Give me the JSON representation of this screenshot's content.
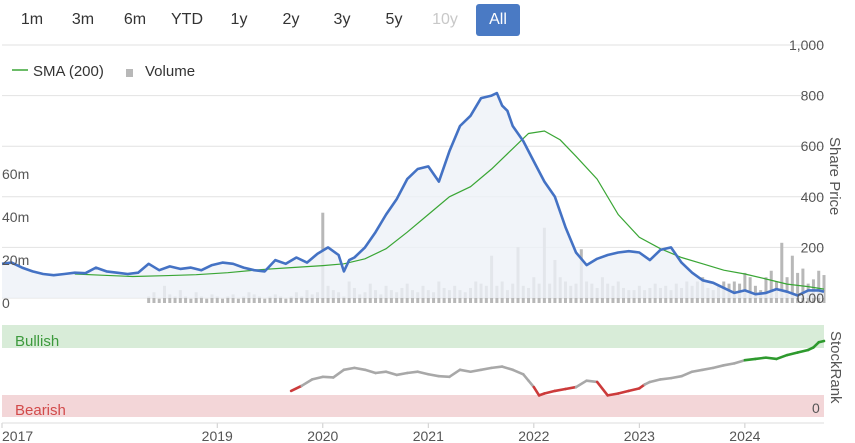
{
  "range_buttons": [
    {
      "label": "1m",
      "state": "normal"
    },
    {
      "label": "3m",
      "state": "normal"
    },
    {
      "label": "6m",
      "state": "normal"
    },
    {
      "label": "YTD",
      "state": "normal"
    },
    {
      "label": "1y",
      "state": "normal"
    },
    {
      "label": "2y",
      "state": "normal"
    },
    {
      "label": "3y",
      "state": "normal"
    },
    {
      "label": "5y",
      "state": "normal"
    },
    {
      "label": "10y",
      "state": "disabled"
    },
    {
      "label": "All",
      "state": "active"
    }
  ],
  "colors": {
    "price_line": "#4472c4",
    "sma_line": "#3aa635",
    "volume_bar": "#b8b8b8",
    "price_area": "#eef1f7",
    "bullish_band": "#d8ecd8",
    "bearish_band": "#f3d6d8",
    "rank_neutral": "#a8a8a8",
    "rank_bearish": "#cc3b3b",
    "rank_bullish": "#2e9a2e",
    "bullish_text": "#3c9a3c",
    "bearish_text": "#d24a4a",
    "grid": "#e2e2e2"
  },
  "chart_data": [
    {
      "type": "line",
      "title": "",
      "legend": {
        "placement": "top-left",
        "entries": [
          "SMA (200)",
          "Volume"
        ]
      },
      "y_right_label": "Share Price",
      "y_right_ticks": [
        "1,000",
        "800",
        "600",
        "400",
        "200",
        "0.00"
      ],
      "y_right_range": [
        0,
        1000
      ],
      "y_left_ticks": [
        "60m",
        "40m",
        "20m",
        "0"
      ],
      "y_left_range": [
        0,
        120
      ],
      "x_ticks": [
        "2017",
        "2019",
        "2020",
        "2021",
        "2022",
        "2023",
        "2024"
      ],
      "x_range": [
        2016.96,
        2024.75
      ],
      "grid": true,
      "series": [
        {
          "name": "",
          "kind": "price",
          "x": [
            2016.96,
            2017.05,
            2017.15,
            2017.25,
            2017.35,
            2017.45,
            2017.55,
            2017.65,
            2017.75,
            2017.85,
            2017.95,
            2018.05,
            2018.15,
            2018.25,
            2018.35,
            2018.45,
            2018.55,
            2018.65,
            2018.75,
            2018.85,
            2018.95,
            2019.05,
            2019.15,
            2019.25,
            2019.35,
            2019.45,
            2019.55,
            2019.65,
            2019.75,
            2019.85,
            2019.95,
            2020.05,
            2020.15,
            2020.2,
            2020.25,
            2020.3,
            2020.4,
            2020.5,
            2020.6,
            2020.7,
            2020.8,
            2020.9,
            2021.0,
            2021.1,
            2021.2,
            2021.3,
            2021.4,
            2021.5,
            2021.6,
            2021.65,
            2021.7,
            2021.75,
            2021.8,
            2021.9,
            2022.0,
            2022.1,
            2022.2,
            2022.3,
            2022.4,
            2022.5,
            2022.6,
            2022.7,
            2022.8,
            2022.9,
            2023.0,
            2023.1,
            2023.2,
            2023.3,
            2023.4,
            2023.5,
            2023.6,
            2023.7,
            2023.8,
            2023.9,
            2024.0,
            2024.1,
            2024.2,
            2024.3,
            2024.4,
            2024.5,
            2024.6,
            2024.7,
            2024.75
          ],
          "values": [
            135,
            140,
            120,
            105,
            95,
            90,
            95,
            100,
            98,
            120,
            105,
            100,
            95,
            100,
            135,
            110,
            125,
            115,
            120,
            110,
            130,
            140,
            135,
            120,
            110,
            105,
            150,
            135,
            160,
            140,
            175,
            200,
            170,
            105,
            150,
            160,
            200,
            260,
            330,
            390,
            470,
            510,
            520,
            460,
            580,
            680,
            720,
            790,
            800,
            810,
            760,
            740,
            680,
            620,
            540,
            460,
            400,
            280,
            180,
            130,
            155,
            170,
            180,
            185,
            180,
            150,
            190,
            200,
            140,
            100,
            70,
            60,
            40,
            20,
            30,
            15,
            20,
            35,
            25,
            10,
            30,
            30,
            25
          ]
        },
        {
          "name": "SMA (200)",
          "kind": "sma",
          "x": [
            2017.65,
            2017.9,
            2018.2,
            2018.5,
            2018.8,
            2019.1,
            2019.4,
            2019.7,
            2020.0,
            2020.2,
            2020.4,
            2020.6,
            2020.8,
            2021.0,
            2021.2,
            2021.4,
            2021.6,
            2021.8,
            2021.95,
            2022.1,
            2022.25,
            2022.4,
            2022.6,
            2022.8,
            2023.0,
            2023.2,
            2023.4,
            2023.6,
            2023.8,
            2024.0,
            2024.2,
            2024.4,
            2024.6,
            2024.75
          ],
          "values": [
            95,
            90,
            85,
            88,
            92,
            100,
            112,
            120,
            128,
            135,
            155,
            195,
            260,
            330,
            400,
            440,
            510,
            590,
            650,
            660,
            625,
            560,
            470,
            330,
            240,
            195,
            160,
            135,
            110,
            95,
            75,
            55,
            45,
            35
          ]
        },
        {
          "name": "Volume",
          "kind": "volume",
          "x": [
            2017.05,
            2017.1,
            2017.15,
            2017.2,
            2017.25,
            2017.3,
            2017.35,
            2017.4,
            2017.45,
            2017.5,
            2017.55,
            2017.6,
            2017.65,
            2017.7,
            2017.75,
            2017.8,
            2017.85,
            2017.9,
            2017.95,
            2018.0,
            2018.05,
            2018.1,
            2018.15,
            2018.2,
            2018.25,
            2018.3,
            2018.35,
            2018.4,
            2018.45,
            2018.5,
            2018.55,
            2018.6,
            2018.65,
            2018.7,
            2018.75,
            2018.8,
            2018.85,
            2018.9,
            2018.95,
            2019.0,
            2019.05,
            2019.1,
            2019.15,
            2019.2,
            2019.25,
            2019.3,
            2019.35,
            2019.4,
            2019.45,
            2019.5,
            2019.55,
            2019.6,
            2019.65,
            2019.7,
            2019.75,
            2019.8,
            2019.85,
            2019.9,
            2019.95,
            2020.0,
            2020.05,
            2020.1,
            2020.15,
            2020.2,
            2020.25,
            2020.3,
            2020.35,
            2020.4,
            2020.45,
            2020.5,
            2020.55,
            2020.6,
            2020.65,
            2020.7,
            2020.75,
            2020.8,
            2020.85,
            2020.9,
            2020.95,
            2021.0,
            2021.05,
            2021.1,
            2021.15,
            2021.2,
            2021.25,
            2021.3,
            2021.35,
            2021.4,
            2021.45,
            2021.5,
            2021.55,
            2021.6,
            2021.65,
            2021.7,
            2021.75,
            2021.8,
            2021.85,
            2021.9,
            2021.95,
            2022.0,
            2022.05,
            2022.1,
            2022.15,
            2022.2,
            2022.25,
            2022.3,
            2022.35,
            2022.4,
            2022.45,
            2022.5,
            2022.55,
            2022.6,
            2022.65,
            2022.7,
            2022.75,
            2022.8,
            2022.85,
            2022.9,
            2022.95,
            2023.0,
            2023.05,
            2023.1,
            2023.15,
            2023.2,
            2023.25,
            2023.3,
            2023.35,
            2023.4,
            2023.45,
            2023.5,
            2023.55,
            2023.6,
            2023.65,
            2023.7,
            2023.75,
            2023.8,
            2023.85,
            2023.9,
            2023.95,
            2024.0,
            2024.05,
            2024.1,
            2024.15,
            2024.2,
            2024.25,
            2024.3,
            2024.35,
            2024.4,
            2024.45,
            2024.5,
            2024.55,
            2024.6,
            2024.65,
            2024.7,
            2024.75
          ],
          "values": [
            0,
            0,
            0,
            0,
            0,
            0,
            0,
            0,
            0,
            0,
            0,
            0,
            0,
            0,
            0,
            0,
            0,
            0,
            0,
            0,
            0,
            0,
            0,
            0,
            0,
            0,
            3,
            5,
            2,
            8,
            4,
            3,
            6,
            3,
            2,
            5,
            3,
            2,
            4,
            3,
            2,
            3,
            4,
            2,
            3,
            5,
            4,
            3,
            2,
            3,
            4,
            3,
            2,
            3,
            5,
            3,
            6,
            4,
            5,
            42,
            8,
            6,
            5,
            3,
            10,
            7,
            4,
            5,
            9,
            6,
            4,
            8,
            6,
            5,
            7,
            9,
            6,
            5,
            8,
            6,
            5,
            10,
            7,
            6,
            8,
            6,
            5,
            7,
            10,
            9,
            8,
            22,
            8,
            10,
            6,
            9,
            26,
            8,
            7,
            12,
            9,
            35,
            9,
            20,
            12,
            10,
            8,
            9,
            25,
            10,
            9,
            7,
            12,
            9,
            8,
            10,
            7,
            6,
            6,
            8,
            6,
            7,
            9,
            7,
            8,
            6,
            9,
            7,
            10,
            8,
            10,
            12,
            7,
            6,
            8,
            10,
            9,
            10,
            9,
            14,
            12,
            8,
            6,
            12,
            15,
            10,
            28,
            12,
            22,
            14,
            16,
            9,
            11,
            15,
            13
          ]
        }
      ]
    },
    {
      "type": "line",
      "y_right_label": "StockRank",
      "y_right_ticks": [
        "0"
      ],
      "y_range": [
        0,
        100
      ],
      "bands": [
        {
          "label": "Bullish",
          "from": 70,
          "to": 100
        },
        {
          "label": "Bearish",
          "from": 0,
          "to": 30
        }
      ],
      "series": [
        {
          "name": "",
          "x": [
            2019.7,
            2019.8,
            2019.9,
            2020.0,
            2020.1,
            2020.2,
            2020.3,
            2020.4,
            2020.5,
            2020.6,
            2020.7,
            2020.8,
            2020.9,
            2021.0,
            2021.1,
            2021.2,
            2021.3,
            2021.4,
            2021.5,
            2021.6,
            2021.7,
            2021.8,
            2021.9,
            2021.95,
            2022.0,
            2022.05,
            2022.1,
            2022.2,
            2022.3,
            2022.4,
            2022.5,
            2022.6,
            2022.7,
            2022.8,
            2022.9,
            2023.0,
            2023.05,
            2023.1,
            2023.2,
            2023.3,
            2023.4,
            2023.5,
            2023.6,
            2023.7,
            2023.8,
            2023.9,
            2024.0,
            2024.1,
            2024.2,
            2024.3,
            2024.4,
            2024.5,
            2024.6,
            2024.65,
            2024.7,
            2024.75
          ],
          "values": [
            22,
            30,
            40,
            44,
            43,
            55,
            58,
            55,
            50,
            52,
            47,
            50,
            52,
            48,
            45,
            44,
            55,
            52,
            55,
            58,
            60,
            55,
            48,
            38,
            28,
            15,
            18,
            22,
            25,
            28,
            38,
            36,
            15,
            18,
            22,
            26,
            32,
            36,
            40,
            42,
            45,
            52,
            55,
            58,
            62,
            65,
            70,
            72,
            74,
            72,
            78,
            82,
            86,
            90,
            98,
            100
          ]
        }
      ],
      "band_labels": [
        "Bullish",
        "Bearish"
      ]
    }
  ]
}
